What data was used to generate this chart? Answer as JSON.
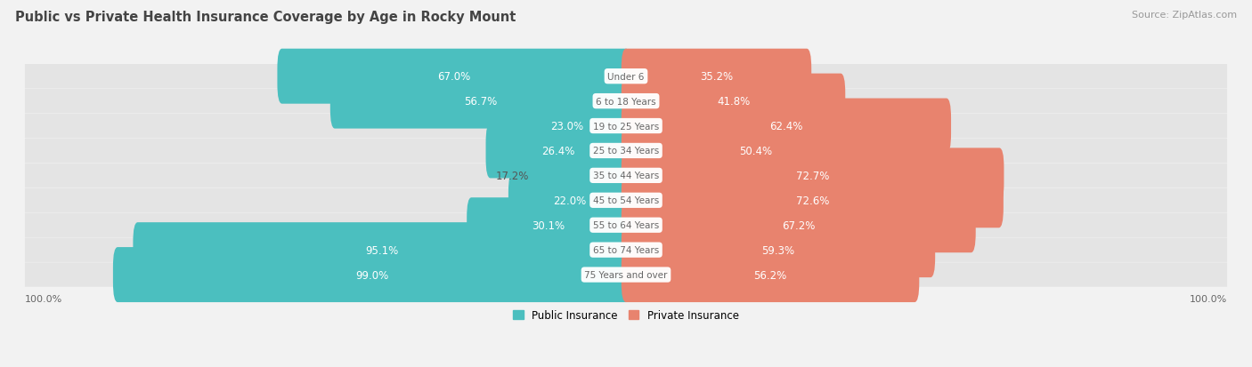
{
  "title": "Public vs Private Health Insurance Coverage by Age in Rocky Mount",
  "source": "Source: ZipAtlas.com",
  "categories": [
    "Under 6",
    "6 to 18 Years",
    "19 to 25 Years",
    "25 to 34 Years",
    "35 to 44 Years",
    "45 to 54 Years",
    "55 to 64 Years",
    "65 to 74 Years",
    "75 Years and over"
  ],
  "public_values": [
    67.0,
    56.7,
    23.0,
    26.4,
    17.2,
    22.0,
    30.1,
    95.1,
    99.0
  ],
  "private_values": [
    35.2,
    41.8,
    62.4,
    50.4,
    72.7,
    72.6,
    67.2,
    59.3,
    56.2
  ],
  "public_color": "#4BBFBF",
  "private_color": "#E8836E",
  "bg_color": "#f2f2f2",
  "row_bg_color": "#e4e4e4",
  "title_fontsize": 10.5,
  "source_fontsize": 8,
  "bar_label_fontsize": 8.5,
  "category_fontsize": 7.5,
  "legend_fontsize": 8.5,
  "axis_label_fontsize": 8,
  "axis_value": "100.0%",
  "figsize": [
    14.06,
    4.14
  ],
  "dpi": 100,
  "scale": 88.0,
  "bar_height": 0.62,
  "white_threshold": 15.0,
  "pub_label_inside_threshold": 18.0
}
